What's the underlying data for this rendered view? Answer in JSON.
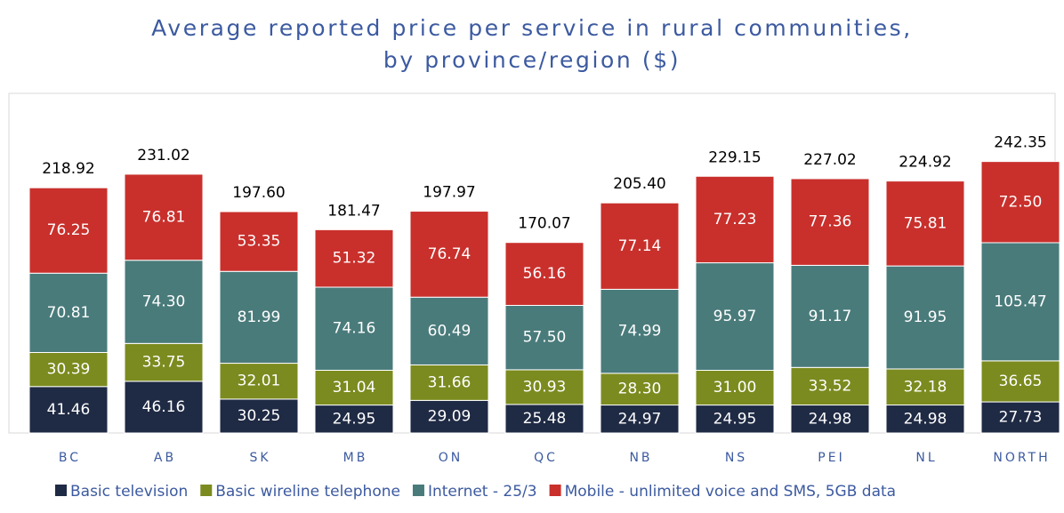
{
  "chart_data": {
    "type": "stacked_bar",
    "title": "Average reported price per service in rural communities, by province/region ($)",
    "categories": [
      "BC",
      "AB",
      "SK",
      "MB",
      "ON",
      "QC",
      "NB",
      "NS",
      "PEI",
      "NL",
      "NORTH"
    ],
    "series": [
      {
        "name": "Basic television",
        "color": "#1f2a44",
        "values": [
          41.46,
          46.16,
          30.25,
          24.95,
          29.09,
          25.48,
          24.97,
          24.95,
          24.98,
          24.98,
          27.73
        ],
        "value_labels": [
          "41.46",
          "46.16",
          "30.25",
          "24.95",
          "29.09",
          "25.48",
          "24.97",
          "24.95",
          "24.98",
          "24.98",
          "27.73"
        ]
      },
      {
        "name": "Basic wireline telephone",
        "color": "#7b8b1f",
        "values": [
          30.39,
          33.75,
          32.01,
          31.04,
          31.66,
          30.93,
          28.3,
          31,
          33.52,
          32.18,
          36.65
        ],
        "value_labels": [
          "30.39",
          "33.75",
          "32.01",
          "31.04",
          "31.66",
          "30.93",
          "28.30",
          "31.00",
          "33.52",
          "32.18",
          "36.65"
        ]
      },
      {
        "name": "Internet - 25/3",
        "color": "#4a7b7b",
        "values": [
          70.81,
          74.3,
          81.99,
          74.16,
          60.49,
          57.5,
          74.99,
          95.97,
          91.17,
          91.95,
          105.47
        ],
        "value_labels": [
          "70.81",
          "74.30",
          "81.99",
          "74.16",
          "60.49",
          "57.50",
          "74.99",
          "95.97",
          "91.17",
          "91.95",
          "105.47"
        ]
      },
      {
        "name": "Mobile - unlimited voice and SMS, 5GB data",
        "color": "#c9302c",
        "values": [
          76.25,
          76.81,
          53.35,
          51.32,
          76.74,
          56.16,
          77.14,
          77.23,
          77.36,
          75.81,
          72.5
        ],
        "value_labels": [
          "76.25",
          "76.81",
          "53.35",
          "51.32",
          "76.74",
          "56.16",
          "77.14",
          "77.23",
          "77.36",
          "75.81",
          "72.50"
        ]
      }
    ],
    "totals": [
      218.92,
      231.02,
      197.6,
      181.47,
      197.97,
      170.07,
      205.4,
      229.15,
      227.02,
      224.92,
      242.35
    ],
    "total_labels": [
      "218.92",
      "231.02",
      "197.60",
      "181.47",
      "197.97",
      "170.07",
      "205.40",
      "229.15",
      "227.02",
      "224.92",
      "242.35"
    ]
  }
}
